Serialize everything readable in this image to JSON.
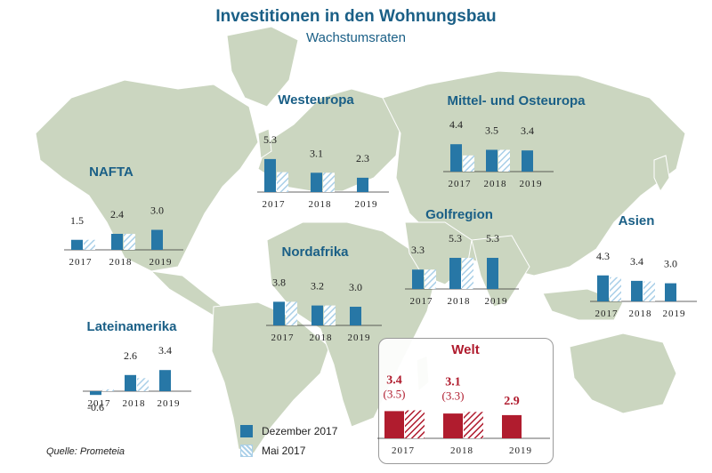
{
  "title": "Investitionen in den Wohnungsbau",
  "subtitle": "Wachstumsraten",
  "source": "Quelle: Prometeia",
  "legend": {
    "dec": "Dezember 2017",
    "may": "Mai 2017"
  },
  "colors": {
    "dec": "#2777a6",
    "may_hatch": "#a9cfe8",
    "welt": "#b01c2e",
    "land": "#cbd6c0",
    "title": "#1a5f86"
  },
  "chart_data": {
    "type": "bar",
    "title": "Investitionen in den Wohnungsbau",
    "subtitle": "Wachstumsraten",
    "categories": [
      "2017",
      "2018",
      "2019"
    ],
    "regions": [
      {
        "name": "NAFTA",
        "labels": [
          "1.5",
          "2.4",
          "3.0"
        ],
        "dec": [
          1.5,
          2.4,
          3.0
        ],
        "may": [
          1.5,
          2.4,
          null
        ]
      },
      {
        "name": "Westeuropa",
        "labels": [
          "5.3",
          "3.1",
          "2.3"
        ],
        "dec": [
          5.3,
          3.1,
          2.3
        ],
        "may": [
          3.2,
          3.1,
          null
        ]
      },
      {
        "name": "Mittel- und Osteuropa",
        "labels": [
          "4.4",
          "3.5",
          "3.4"
        ],
        "dec": [
          4.4,
          3.5,
          3.4
        ],
        "may": [
          2.6,
          3.5,
          null
        ]
      },
      {
        "name": "Golfregion",
        "labels": [
          "3.3",
          "5.3",
          "5.3"
        ],
        "dec": [
          3.3,
          5.3,
          5.3
        ],
        "may": [
          3.3,
          5.3,
          null
        ]
      },
      {
        "name": "Nordafrika",
        "labels": [
          "3.8",
          "3.2",
          "3.0"
        ],
        "dec": [
          3.8,
          3.2,
          3.0
        ],
        "may": [
          3.8,
          3.2,
          null
        ]
      },
      {
        "name": "Asien",
        "labels": [
          "4.3",
          "3.4",
          "3.0"
        ],
        "dec": [
          4.3,
          3.4,
          3.0
        ],
        "may": [
          4.0,
          3.3,
          null
        ]
      },
      {
        "name": "Lateinamerika",
        "labels": [
          "-0.6",
          "2.6",
          "3.4"
        ],
        "dec": [
          -0.6,
          2.6,
          3.4
        ],
        "may": [
          0.3,
          2.1,
          null
        ]
      },
      {
        "name": "Welt",
        "labels": [
          "3.4",
          "3.1",
          "2.9"
        ],
        "sublabels": [
          "(3.5)",
          "(3.3)",
          ""
        ],
        "dec": [
          3.4,
          3.1,
          2.9
        ],
        "may": [
          3.5,
          3.3,
          null
        ]
      }
    ]
  }
}
